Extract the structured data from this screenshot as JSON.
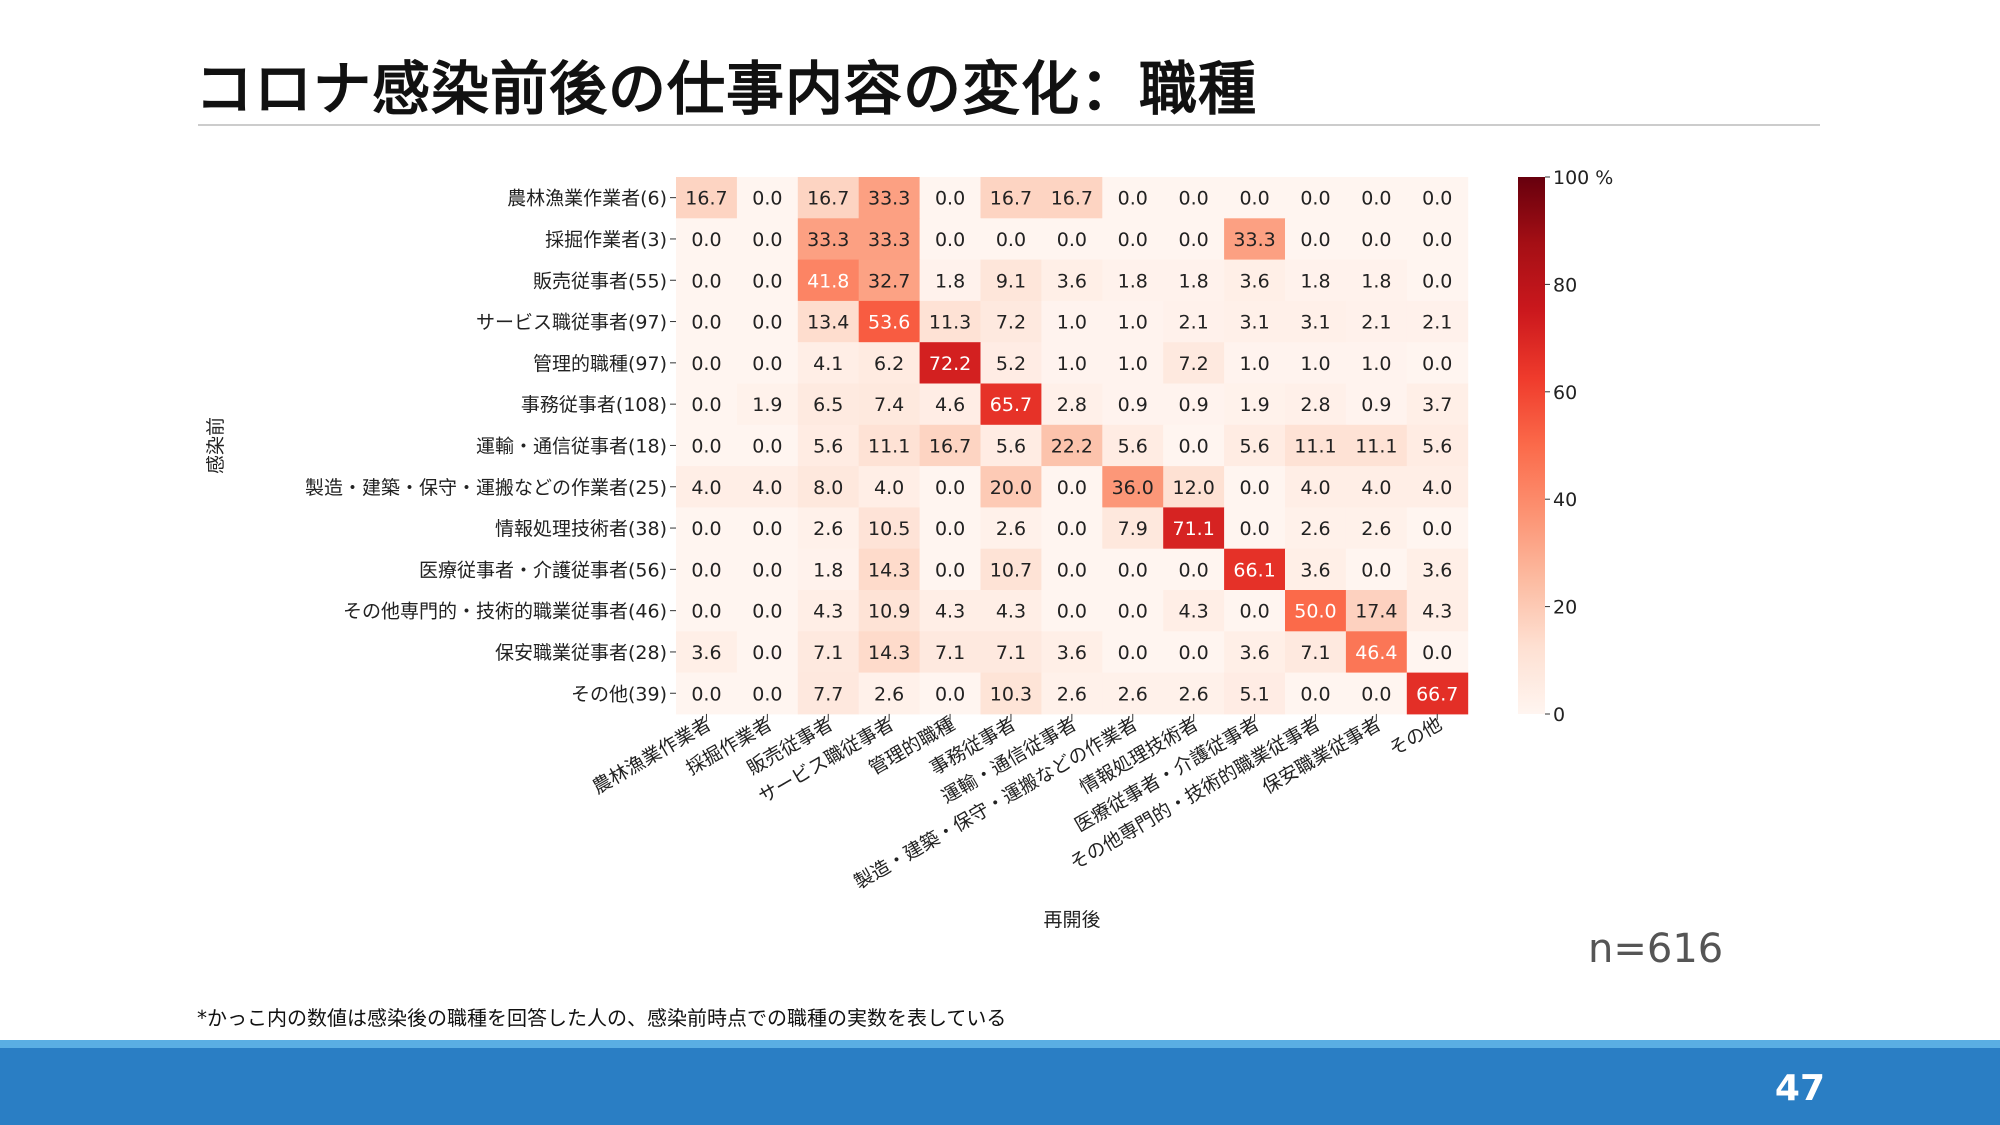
{
  "slide": {
    "title": "コロナ感染前後の仕事内容の変化：職種",
    "n_label": "n=616",
    "footnote": "*かっこ内の数値は感染後の職種を回答した人の、感染前時点での職種の実数を表している",
    "page_number": "47"
  },
  "chart_data": {
    "type": "heatmap",
    "title": "",
    "ylabel": "感染前",
    "xlabel": "再開後",
    "row_labels": [
      "農林漁業作業者(6)",
      "採掘作業者(3)",
      "販売従事者(55)",
      "サービス職従事者(97)",
      "管理的職種(97)",
      "事務従事者(108)",
      "運輸・通信従事者(18)",
      "製造・建築・保守・運搬などの作業者(25)",
      "情報処理技術者(38)",
      "医療従事者・介護従事者(56)",
      "その他専門的・技術的職業従事者(46)",
      "保安職業従事者(28)",
      "その他(39)"
    ],
    "col_labels": [
      "農林漁業作業者",
      "採掘作業者",
      "販売従事者",
      "サービス職従事者",
      "管理的職種",
      "事務従事者",
      "運輸・通信従事者",
      "製造・建築・保守・運搬などの作業者",
      "情報処理技術者",
      "医療従事者・介護従事者",
      "その他専門的・技術的職業従事者",
      "保安職業従事者",
      "その他"
    ],
    "values": [
      [
        "16.7",
        "0.0",
        "16.7",
        "33.3",
        "0.0",
        "16.7",
        "16.7",
        "0.0",
        "0.0",
        "0.0",
        "0.0",
        "0.0",
        "0.0"
      ],
      [
        "0.0",
        "0.0",
        "33.3",
        "33.3",
        "0.0",
        "0.0",
        "0.0",
        "0.0",
        "0.0",
        "33.3",
        "0.0",
        "0.0",
        "0.0"
      ],
      [
        "0.0",
        "0.0",
        "41.8",
        "32.7",
        "1.8",
        "9.1",
        "3.6",
        "1.8",
        "1.8",
        "3.6",
        "1.8",
        "1.8",
        "0.0"
      ],
      [
        "0.0",
        "0.0",
        "13.4",
        "53.6",
        "11.3",
        "7.2",
        "1.0",
        "1.0",
        "2.1",
        "3.1",
        "3.1",
        "2.1",
        "2.1"
      ],
      [
        "0.0",
        "0.0",
        "4.1",
        "6.2",
        "72.2",
        "5.2",
        "1.0",
        "1.0",
        "7.2",
        "1.0",
        "1.0",
        "1.0",
        "0.0"
      ],
      [
        "0.0",
        "1.9",
        "6.5",
        "7.4",
        "4.6",
        "65.7",
        "2.8",
        "0.9",
        "0.9",
        "1.9",
        "2.8",
        "0.9",
        "3.7"
      ],
      [
        "0.0",
        "0.0",
        "5.6",
        "11.1",
        "16.7",
        "5.6",
        "22.2",
        "5.6",
        "0.0",
        "5.6",
        "11.1",
        "11.1",
        "5.6"
      ],
      [
        "4.0",
        "4.0",
        "8.0",
        "4.0",
        "0.0",
        "20.0",
        "0.0",
        "36.0",
        "12.0",
        "0.0",
        "4.0",
        "4.0",
        "4.0"
      ],
      [
        "0.0",
        "0.0",
        "2.6",
        "10.5",
        "0.0",
        "2.6",
        "0.0",
        "7.9",
        "71.1",
        "0.0",
        "2.6",
        "2.6",
        "0.0"
      ],
      [
        "0.0",
        "0.0",
        "1.8",
        "14.3",
        "0.0",
        "10.7",
        "0.0",
        "0.0",
        "0.0",
        "66.1",
        "3.6",
        "0.0",
        "3.6"
      ],
      [
        "0.0",
        "0.0",
        "4.3",
        "10.9",
        "4.3",
        "4.3",
        "0.0",
        "0.0",
        "4.3",
        "0.0",
        "50.0",
        "17.4",
        "4.3"
      ],
      [
        "3.6",
        "0.0",
        "7.1",
        "14.3",
        "7.1",
        "7.1",
        "3.6",
        "0.0",
        "0.0",
        "3.6",
        "7.1",
        "46.4",
        "0.0"
      ],
      [
        "0.0",
        "0.0",
        "7.7",
        "2.6",
        "0.0",
        "10.3",
        "2.6",
        "2.6",
        "2.6",
        "5.1",
        "0.0",
        "0.0",
        "66.7"
      ]
    ],
    "colorbar": {
      "range": [
        0,
        100
      ],
      "ticks": [
        "0",
        "20",
        "40",
        "60",
        "80",
        "100 %"
      ],
      "low_color": "#fff5f0",
      "mid_color": "#fb6a4a",
      "high_color": "#67000d"
    }
  }
}
